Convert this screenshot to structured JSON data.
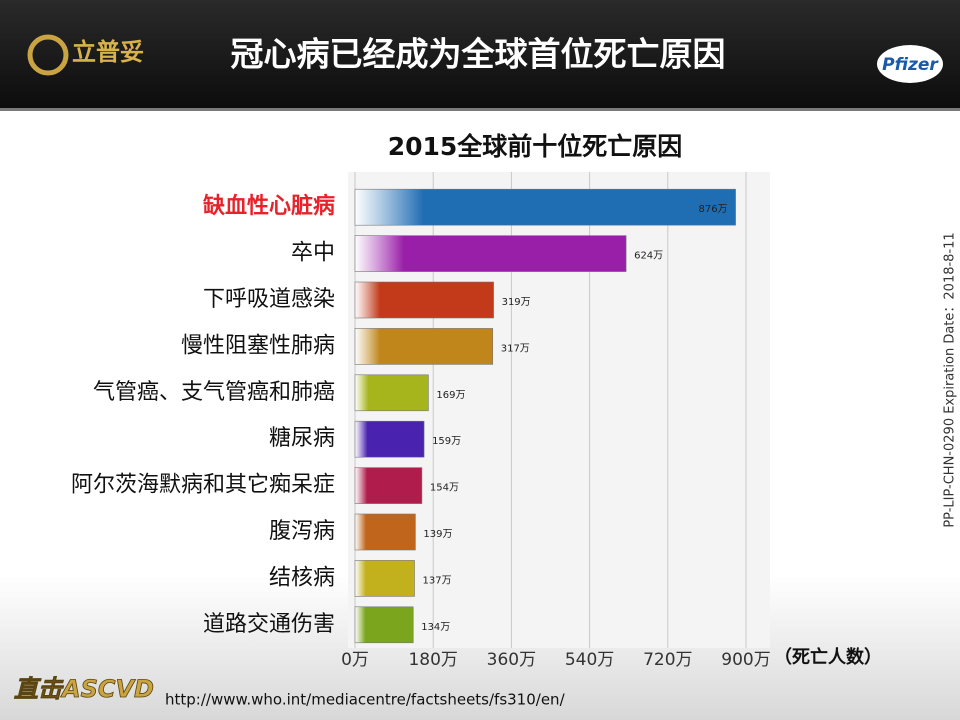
{
  "header": {
    "logo": "立普妥",
    "title": "冠心病已经成为全球首位死亡原因",
    "brand": "Pfizer"
  },
  "side_note": "PP-LIP-CHN-0290    Expiration Date：2018-8-11",
  "chart_data": {
    "type": "bar",
    "orientation": "horizontal",
    "title": "2015全球前十位死亡原因",
    "x_label": "（死亡人数）",
    "categories": [
      "缺血性心脏病",
      "卒中",
      "下呼吸道感染",
      "慢性阻塞性肺病",
      "气管癌、支气管癌和肺癌",
      "糖尿病",
      "阿尔茨海默病和其它痴呆症",
      "腹泻病",
      "结核病",
      "道路交通伤害"
    ],
    "highlight_category": 0,
    "highlight_color": "#e8222a",
    "values": [
      876,
      624,
      319,
      317,
      169,
      159,
      154,
      139,
      137,
      134
    ],
    "value_labels": [
      "876万",
      "624万",
      "319万",
      "317万",
      "169万",
      "159万",
      "154万",
      "139万",
      "137万",
      "134万"
    ],
    "colors": [
      "#1f6db3",
      "#9a1fa8",
      "#c23a1a",
      "#c0861c",
      "#a6b51c",
      "#4a22b0",
      "#b01c4c",
      "#c0661c",
      "#c2b01c",
      "#7aa51c"
    ],
    "xlim": [
      0,
      900
    ],
    "xticks": [
      {
        "value": 0,
        "label": "0万"
      },
      {
        "value": 180,
        "label": "180万"
      },
      {
        "value": 360,
        "label": "360万"
      },
      {
        "value": 540,
        "label": "540万"
      },
      {
        "value": 720,
        "label": "720万"
      },
      {
        "value": 900,
        "label": "900万"
      }
    ],
    "grid": true
  },
  "footer": {
    "logo": "直击ASCVD",
    "url": "http://www.who.int/mediacentre/factsheets/fs310/en/"
  }
}
